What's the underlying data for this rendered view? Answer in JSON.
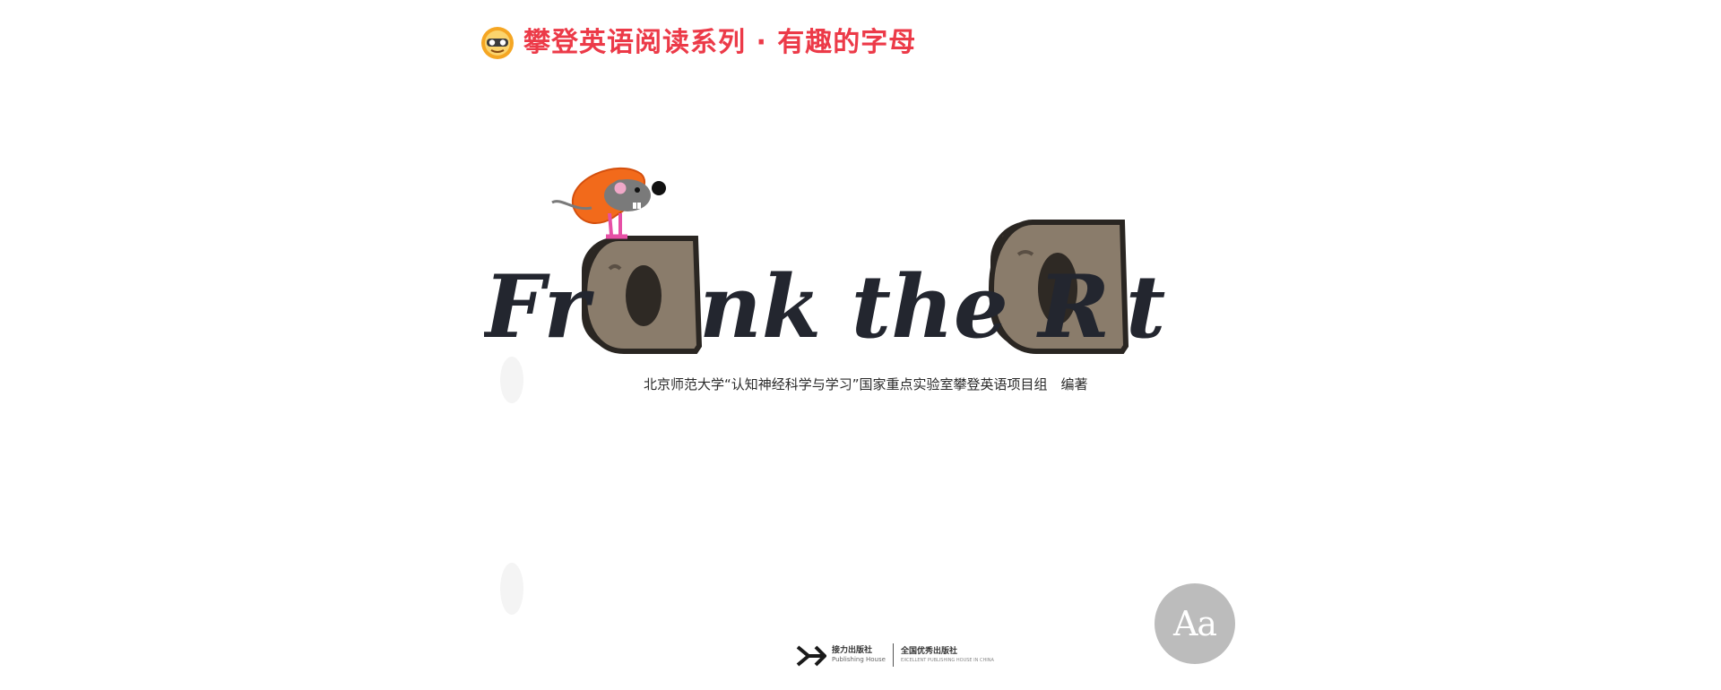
{
  "series": {
    "title": "攀登英语阅读系列 · 有趣的字母",
    "logo_icon": "goggles-mascot-icon"
  },
  "book": {
    "title_parts": [
      "Fr",
      "nk the R",
      "t"
    ],
    "highlight_letter": "a",
    "editors": "北京师范大学“认知神经科学与学习”国家重点实验室攀登英语项目组　编著"
  },
  "badge": {
    "text": "Aa"
  },
  "publishers": [
    {
      "name": "接力出版社",
      "name_en": "Publishing House"
    },
    {
      "name": "全国优秀出版社",
      "name_en": "EXCELLENT PUBLISHING HOUSE IN CHINA"
    }
  ],
  "colors": {
    "series_red": "#ec3a48",
    "title_ink": "#23262f",
    "wood_fill": "#8a7c6b",
    "hat_orange": "#f26a1b",
    "badge_gray": "#bcbcbc"
  }
}
